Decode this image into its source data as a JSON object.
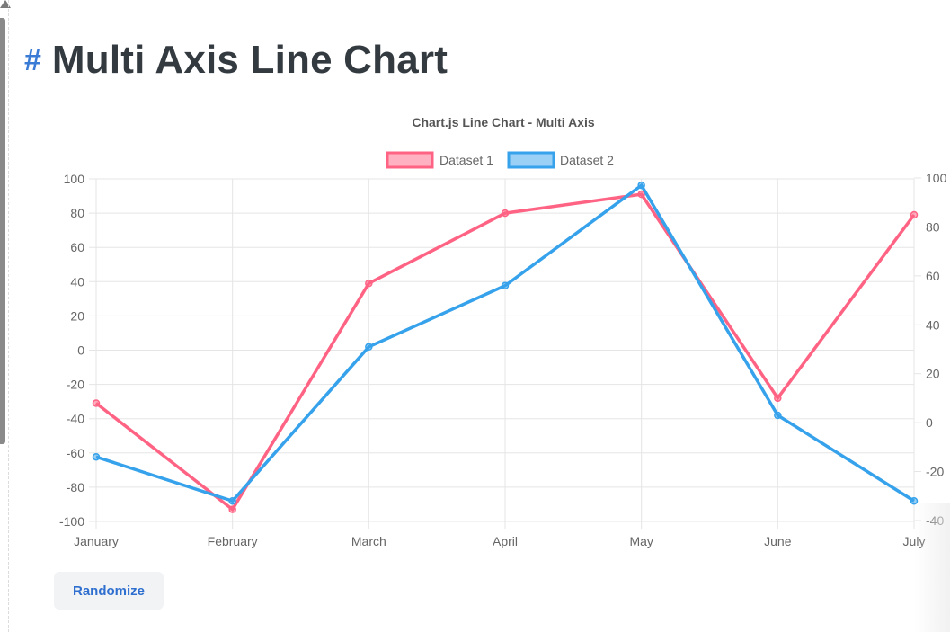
{
  "page": {
    "heading_hash": "#",
    "heading": "Multi Axis Line Chart",
    "randomize_label": "Randomize"
  },
  "colors": {
    "dataset1": "#ff6384",
    "dataset2": "#36a2eb",
    "grid": "#e5e5e5",
    "tick_text": "#666666",
    "accent": "#2f6fcf"
  },
  "chart_data": {
    "type": "line",
    "title": "Chart.js Line Chart - Multi Axis",
    "categories": [
      "January",
      "February",
      "March",
      "April",
      "May",
      "June",
      "July"
    ],
    "legend_position": "top",
    "grid": true,
    "y_left": {
      "min": -100,
      "max": 100,
      "ticks": [
        "100",
        "80",
        "60",
        "40",
        "20",
        "0",
        "-20",
        "-40",
        "-60",
        "-80",
        "-100"
      ]
    },
    "y_right": {
      "min": -40,
      "max": 100,
      "ticks": [
        "100",
        "80",
        "60",
        "40",
        "20",
        "0",
        "-20",
        "-40"
      ]
    },
    "series": [
      {
        "name": "Dataset 1",
        "axis": "left",
        "values": [
          -31,
          -93,
          39,
          80,
          91,
          -28,
          79
        ]
      },
      {
        "name": "Dataset 2",
        "axis": "right",
        "values": [
          -14,
          -32,
          31,
          56,
          97,
          3,
          -32
        ]
      }
    ]
  }
}
